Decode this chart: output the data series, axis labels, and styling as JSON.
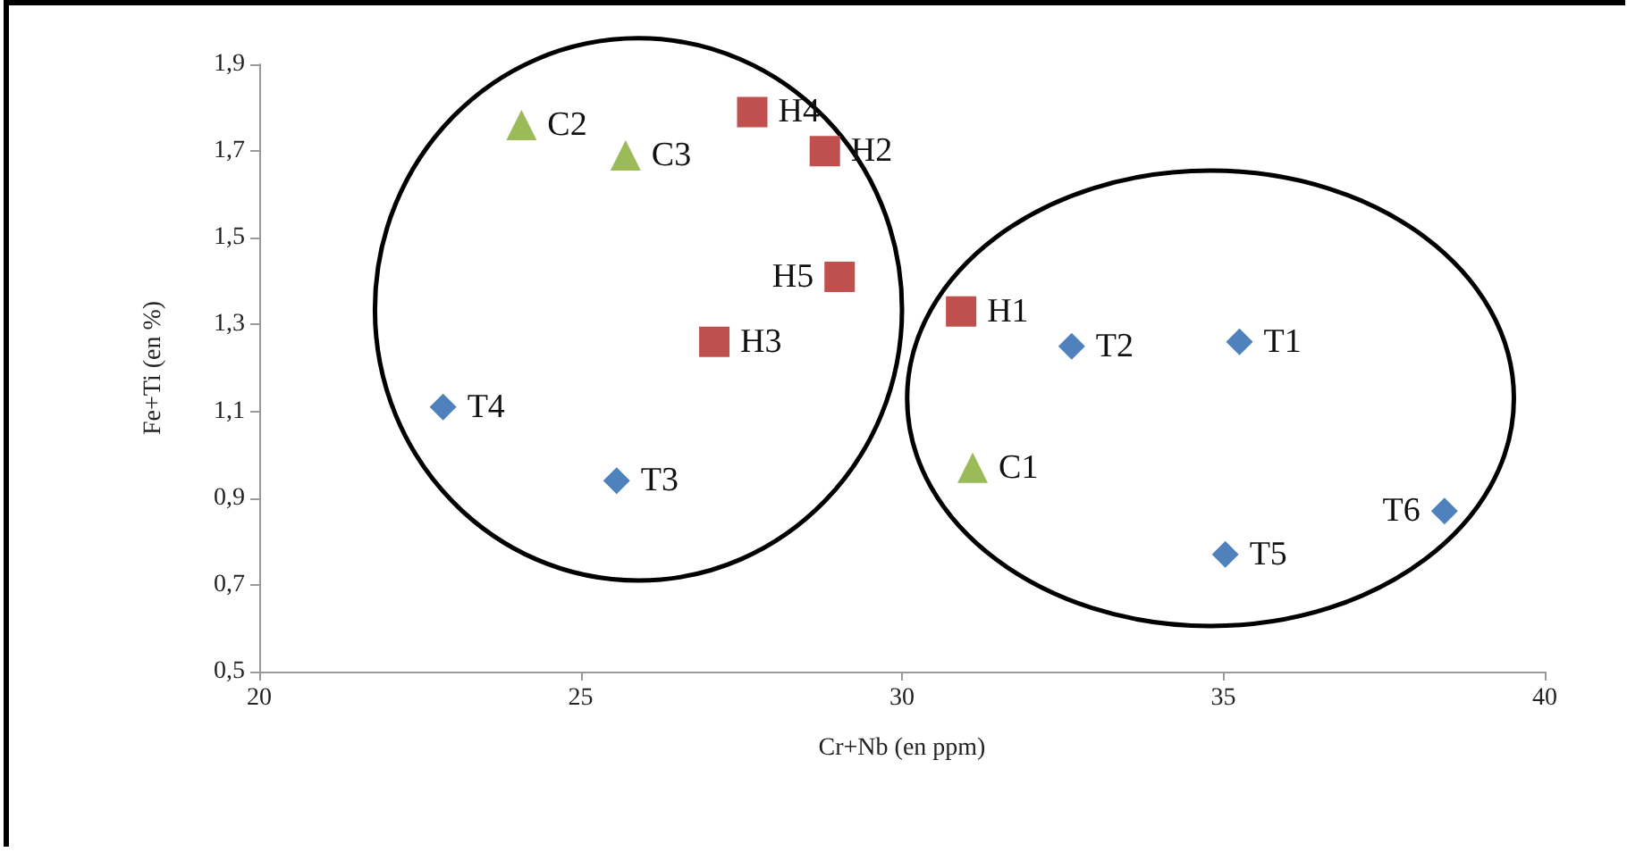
{
  "chart_data": {
    "type": "scatter",
    "xlabel": "Cr+Nb (en ppm)",
    "ylabel": "Fe+Ti (en %)",
    "xlim": [
      20,
      40
    ],
    "xticks": [
      20,
      25,
      30,
      35,
      40
    ],
    "ylim": [
      0.5,
      1.9
    ],
    "yticks": [
      {
        "value": 0.5,
        "label": "0,5"
      },
      {
        "value": 0.7,
        "label": "0,7"
      },
      {
        "value": 0.9,
        "label": "0,9"
      },
      {
        "value": 1.1,
        "label": "1,1"
      },
      {
        "value": 1.3,
        "label": "1,3"
      },
      {
        "value": 1.5,
        "label": "1,5"
      },
      {
        "value": 1.7,
        "label": "1,7"
      },
      {
        "value": 1.9,
        "label": "1,9"
      }
    ],
    "grid": false,
    "series": [
      {
        "color": "#4f81bd",
        "marker": "diamond",
        "x": [
          35.25,
          32.64,
          25.56,
          22.86,
          35.03,
          38.44
        ],
        "values": [
          1.26,
          1.25,
          0.94,
          1.11,
          0.77,
          0.87
        ],
        "value_labels": [
          "T1",
          "T2",
          "T3",
          "T4",
          "T5",
          "T6"
        ]
      },
      {
        "color": "#c0504d",
        "marker": "square",
        "x": [
          30.92,
          28.8,
          27.08,
          27.67,
          29.03
        ],
        "values": [
          1.33,
          1.7,
          1.26,
          1.79,
          1.41
        ],
        "value_labels": [
          "H1",
          "H2",
          "H3",
          "H4",
          "H5"
        ]
      },
      {
        "color": "#9bbb59",
        "marker": "triangle",
        "x": [
          31.1,
          24.08,
          25.7
        ],
        "values": [
          0.97,
          1.76,
          1.69
        ],
        "value_labels": [
          "C1",
          "C2",
          "C3"
        ]
      }
    ]
  }
}
